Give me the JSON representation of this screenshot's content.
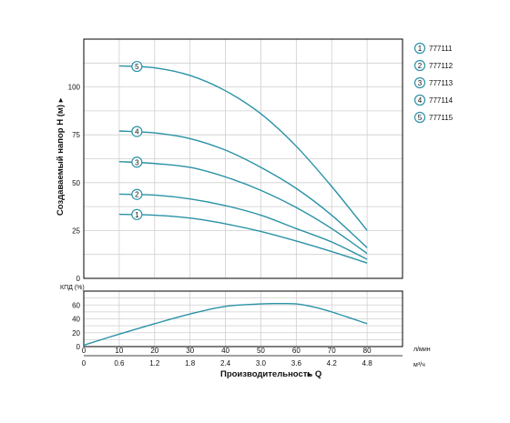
{
  "chart_data": [
    {
      "type": "line",
      "ylabel": "Создаваемый напор H (м)",
      "ylabel_arrow": "►",
      "xlim": [
        0,
        90
      ],
      "ylim": [
        0,
        125
      ],
      "yticks": [
        0,
        25,
        50,
        75,
        100
      ],
      "x_lpm_ticks": [
        0,
        10,
        20,
        30,
        40,
        50,
        60,
        70,
        80
      ],
      "x_m3h_ticks": [
        "0",
        "0.6",
        "1.2",
        "1.8",
        "2.4",
        "3.0",
        "3.6",
        "4.2",
        "4.8"
      ],
      "unit_lpm": "л/мин",
      "unit_m3h": "м³/ч",
      "grid": true,
      "legend_position": "right",
      "series": [
        {
          "name": "777111",
          "label": "1",
          "x": [
            10,
            20,
            30,
            40,
            50,
            60,
            70,
            80
          ],
          "y": [
            33.5,
            33,
            31.5,
            28.5,
            24.5,
            19.5,
            14,
            8
          ]
        },
        {
          "name": "777112",
          "label": "2",
          "x": [
            10,
            20,
            30,
            40,
            50,
            60,
            70,
            80
          ],
          "y": [
            44,
            43.5,
            41.5,
            38,
            33,
            26,
            19,
            10
          ]
        },
        {
          "name": "777113",
          "label": "3",
          "x": [
            10,
            20,
            30,
            40,
            50,
            60,
            70,
            80
          ],
          "y": [
            61,
            60,
            58,
            53,
            46,
            37,
            26,
            13
          ]
        },
        {
          "name": "777114",
          "label": "4",
          "x": [
            10,
            20,
            30,
            40,
            50,
            60,
            70,
            80
          ],
          "y": [
            77,
            76,
            73,
            67,
            58,
            47,
            33,
            16
          ]
        },
        {
          "name": "777115",
          "label": "5",
          "x": [
            10,
            20,
            30,
            40,
            50,
            60,
            70,
            80
          ],
          "y": [
            111,
            110,
            106,
            98,
            86,
            69,
            48,
            25
          ]
        }
      ]
    },
    {
      "type": "line",
      "ylabel": "КПД (%)",
      "xlabel": "Производительность Q",
      "xlabel_arrow": "►",
      "xlim": [
        0,
        90
      ],
      "ylim": [
        0,
        80
      ],
      "yticks": [
        0,
        20,
        40,
        60
      ],
      "grid": true,
      "series": [
        {
          "x": [
            0,
            10,
            20,
            30,
            40,
            50,
            55,
            60,
            65,
            70,
            80
          ],
          "y": [
            2,
            18,
            33,
            47,
            58,
            61.5,
            62,
            61.5,
            57,
            50,
            33
          ]
        }
      ]
    }
  ]
}
